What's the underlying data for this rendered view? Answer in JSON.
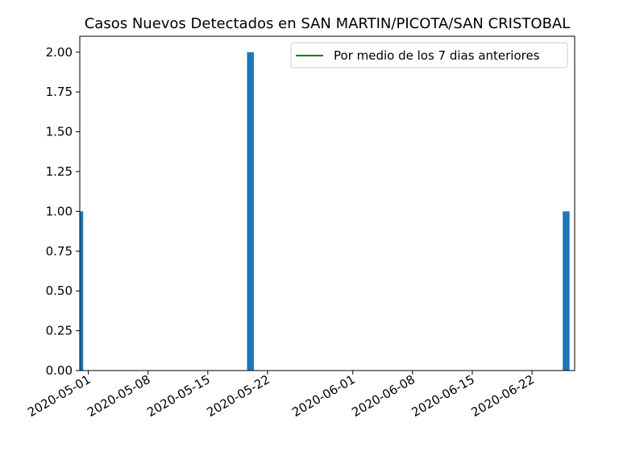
{
  "chart_data": {
    "type": "bar",
    "title": "Casos Nuevos Detectados en SAN MARTIN/PICOTA/SAN CRISTOBAL",
    "xlabel": "",
    "ylabel": "",
    "bars": [
      {
        "date": "2020-04-30",
        "value": 1
      },
      {
        "date": "2020-05-20",
        "value": 2
      },
      {
        "date": "2020-06-26",
        "value": 1
      }
    ],
    "series": [
      {
        "name": "Por medio de los 7 dias anteriores",
        "type": "line",
        "color": "#008000",
        "values": []
      }
    ],
    "bar_color": "#1f77b4",
    "xlim": [
      "2020-04-30",
      "2020-06-27"
    ],
    "ylim": [
      0,
      2.1
    ],
    "x_ticks": [
      "2020-05-01",
      "2020-05-08",
      "2020-05-15",
      "2020-05-22",
      "2020-06-01",
      "2020-06-08",
      "2020-06-15",
      "2020-06-22"
    ],
    "y_ticks": [
      "0.00",
      "0.25",
      "0.50",
      "0.75",
      "1.00",
      "1.25",
      "1.50",
      "1.75",
      "2.00"
    ],
    "grid": false,
    "legend_position": "upper right"
  }
}
